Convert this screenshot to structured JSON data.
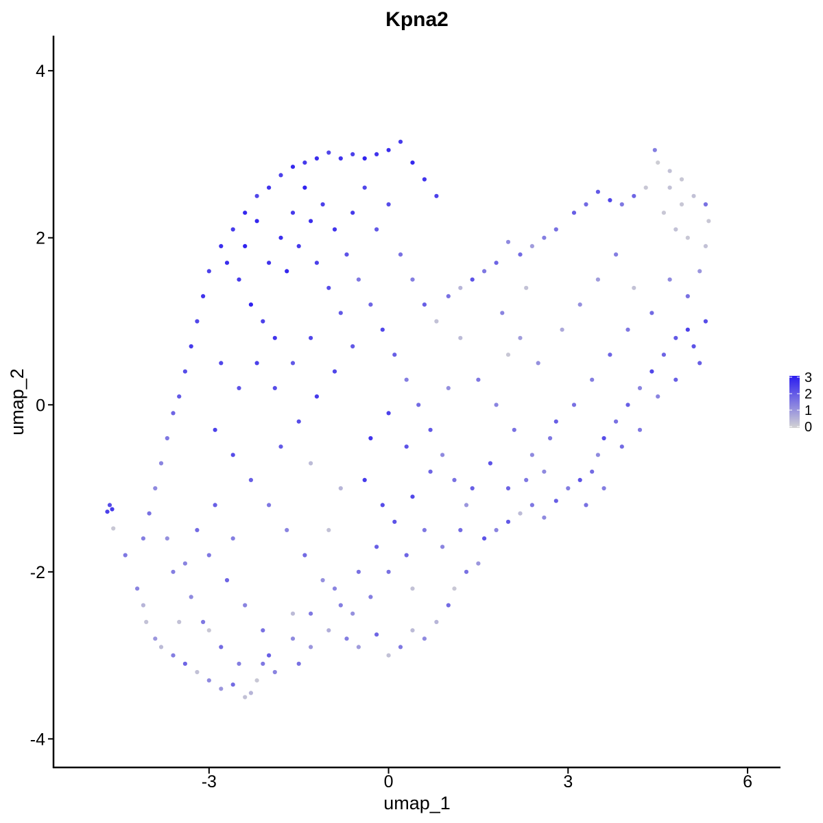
{
  "chart_data": {
    "type": "scatter",
    "title": "Kpna2",
    "xlabel": "umap_1",
    "ylabel": "umap_2",
    "xlim": [
      -5.6,
      6.55
    ],
    "ylim": [
      -4.35,
      4.42
    ],
    "x_ticks": [
      -3,
      0,
      3,
      6
    ],
    "y_ticks": [
      -4,
      -2,
      0,
      2,
      4
    ],
    "x_tick_labels": [
      "-3",
      "0",
      "3",
      "6"
    ],
    "y_tick_labels": [
      "-4",
      "-2",
      "0",
      "2",
      "4"
    ],
    "grid": false,
    "legend": {
      "placement": "right",
      "type": "colorbar",
      "range": [
        0,
        3
      ],
      "ticks": [
        0,
        1,
        2,
        3
      ],
      "labels": [
        "0",
        "1",
        "2",
        "3"
      ],
      "low_color": "#d3d3d3",
      "high_color": "#2a1cf0"
    },
    "colors": {
      "low": "#d3d3d3",
      "high": "#2a1cf0"
    },
    "points": [
      [
        -4.7,
        -1.28,
        2.4
      ],
      [
        -4.66,
        -1.2,
        2.2
      ],
      [
        -4.62,
        -1.25,
        2.5
      ],
      [
        -4.6,
        -1.48,
        0.2
      ],
      [
        -4.4,
        -1.8,
        1.5
      ],
      [
        -4.2,
        -2.2,
        1.3
      ],
      [
        -4.1,
        -2.4,
        0.5
      ],
      [
        -4.05,
        -2.6,
        0.3
      ],
      [
        -3.9,
        -2.8,
        1.0
      ],
      [
        -3.8,
        -2.9,
        0.4
      ],
      [
        -3.6,
        -3.0,
        1.4
      ],
      [
        -3.4,
        -3.1,
        1.8
      ],
      [
        -3.2,
        -3.2,
        0.3
      ],
      [
        -3.0,
        -3.3,
        1.2
      ],
      [
        -2.8,
        -3.4,
        1.0
      ],
      [
        -2.6,
        -3.35,
        1.7
      ],
      [
        -2.4,
        -3.5,
        0.3
      ],
      [
        -2.3,
        -3.45,
        0.5
      ],
      [
        -2.2,
        -3.3,
        0.2
      ],
      [
        -2.1,
        -3.1,
        1.5
      ],
      [
        -2.0,
        -3.0,
        1.9
      ],
      [
        -1.9,
        -3.2,
        1.3
      ],
      [
        -1.5,
        -3.1,
        1.6
      ],
      [
        -1.3,
        -2.9,
        1.0
      ],
      [
        -1.0,
        -2.7,
        0.6
      ],
      [
        -0.7,
        -2.8,
        1.4
      ],
      [
        -0.5,
        -2.9,
        0.9
      ],
      [
        -0.2,
        -2.75,
        1.8
      ],
      [
        0.0,
        -3.0,
        0.3
      ],
      [
        0.2,
        -2.9,
        1.5
      ],
      [
        0.4,
        -2.7,
        0.4
      ],
      [
        0.6,
        -2.8,
        1.2
      ],
      [
        0.8,
        -2.6,
        0.5
      ],
      [
        1.0,
        -2.4,
        1.7
      ],
      [
        1.1,
        -2.2,
        0.2
      ],
      [
        1.3,
        -2.0,
        1.6
      ],
      [
        1.5,
        -1.9,
        1.0
      ],
      [
        1.6,
        -1.6,
        2.1
      ],
      [
        1.8,
        -1.5,
        1.3
      ],
      [
        2.0,
        -1.4,
        2.0
      ],
      [
        2.2,
        -1.3,
        0.4
      ],
      [
        2.4,
        -1.2,
        1.5
      ],
      [
        2.6,
        -1.35,
        1.2
      ],
      [
        2.8,
        -1.15,
        1.9
      ],
      [
        3.0,
        -1.0,
        1.4
      ],
      [
        3.2,
        -0.9,
        2.1
      ],
      [
        3.4,
        -0.8,
        1.7
      ],
      [
        3.5,
        -0.6,
        1.2
      ],
      [
        3.6,
        -0.4,
        2.2
      ],
      [
        3.8,
        -0.2,
        1.6
      ],
      [
        4.0,
        0.0,
        1.9
      ],
      [
        4.2,
        0.2,
        1.3
      ],
      [
        4.4,
        0.4,
        2.3
      ],
      [
        4.6,
        0.6,
        1.8
      ],
      [
        4.8,
        0.8,
        2.0
      ],
      [
        5.0,
        0.9,
        2.4
      ],
      [
        5.1,
        0.7,
        2.1
      ],
      [
        5.2,
        0.5,
        1.9
      ],
      [
        5.3,
        1.0,
        2.2
      ],
      [
        5.0,
        1.3,
        1.6
      ],
      [
        5.2,
        1.6,
        1.0
      ],
      [
        5.3,
        1.9,
        0.3
      ],
      [
        5.35,
        2.2,
        0.2
      ],
      [
        5.3,
        2.4,
        1.6
      ],
      [
        5.1,
        2.5,
        0.3
      ],
      [
        4.9,
        2.7,
        0.2
      ],
      [
        4.7,
        2.8,
        0.3
      ],
      [
        4.5,
        2.9,
        0.1
      ],
      [
        4.45,
        3.05,
        1.4
      ],
      [
        4.3,
        2.6,
        0.2
      ],
      [
        4.1,
        2.5,
        1.8
      ],
      [
        3.9,
        2.4,
        1.5
      ],
      [
        3.7,
        2.45,
        2.3
      ],
      [
        3.5,
        2.55,
        2.0
      ],
      [
        3.3,
        2.4,
        1.7
      ],
      [
        3.1,
        2.3,
        1.9
      ],
      [
        2.8,
        2.1,
        1.6
      ],
      [
        2.6,
        2.0,
        1.4
      ],
      [
        2.4,
        1.9,
        0.9
      ],
      [
        2.2,
        1.8,
        1.7
      ],
      [
        2.0,
        1.95,
        1.2
      ],
      [
        1.8,
        1.7,
        1.8
      ],
      [
        1.6,
        1.6,
        1.5
      ],
      [
        1.4,
        1.5,
        2.1
      ],
      [
        1.2,
        1.4,
        0.5
      ],
      [
        1.0,
        1.3,
        1.6
      ],
      [
        0.8,
        2.5,
        2.4
      ],
      [
        0.6,
        2.7,
        2.6
      ],
      [
        0.4,
        2.9,
        2.8
      ],
      [
        0.2,
        3.15,
        2.5
      ],
      [
        0.0,
        3.05,
        2.7
      ],
      [
        -0.2,
        3.0,
        2.6
      ],
      [
        -0.4,
        2.95,
        2.9
      ],
      [
        -0.6,
        3.0,
        2.4
      ],
      [
        -0.8,
        2.95,
        2.6
      ],
      [
        -1.0,
        3.02,
        2.3
      ],
      [
        -1.2,
        2.95,
        2.7
      ],
      [
        -1.4,
        2.9,
        2.5
      ],
      [
        -1.6,
        2.85,
        2.8
      ],
      [
        -1.8,
        2.75,
        2.4
      ],
      [
        -2.0,
        2.6,
        2.6
      ],
      [
        -2.2,
        2.5,
        2.3
      ],
      [
        -2.4,
        2.3,
        2.8
      ],
      [
        -2.6,
        2.1,
        2.5
      ],
      [
        -2.8,
        1.9,
        2.7
      ],
      [
        -3.0,
        1.6,
        2.4
      ],
      [
        -3.1,
        1.3,
        2.6
      ],
      [
        -3.2,
        1.0,
        2.3
      ],
      [
        -3.3,
        0.7,
        2.5
      ],
      [
        -3.4,
        0.4,
        2.2
      ],
      [
        -3.5,
        0.1,
        2.0
      ],
      [
        -3.6,
        -0.1,
        1.8
      ],
      [
        -3.7,
        -0.4,
        1.5
      ],
      [
        -3.8,
        -0.7,
        1.3
      ],
      [
        -3.9,
        -1.0,
        1.2
      ],
      [
        -4.0,
        -1.3,
        1.6
      ],
      [
        -4.1,
        -1.6,
        1.4
      ],
      [
        -2.7,
        1.7,
        2.7
      ],
      [
        -2.5,
        1.5,
        2.5
      ],
      [
        -2.3,
        1.2,
        2.9
      ],
      [
        -2.1,
        1.0,
        2.4
      ],
      [
        -1.9,
        0.8,
        2.6
      ],
      [
        -1.7,
        1.6,
        2.8
      ],
      [
        -1.5,
        1.9,
        2.5
      ],
      [
        -1.3,
        2.2,
        2.7
      ],
      [
        -1.1,
        2.4,
        2.4
      ],
      [
        -0.9,
        2.1,
        2.6
      ],
      [
        -0.7,
        1.8,
        2.1
      ],
      [
        -0.5,
        1.5,
        1.5
      ],
      [
        -0.3,
        1.2,
        1.8
      ],
      [
        -0.1,
        0.9,
        2.3
      ],
      [
        0.1,
        0.6,
        1.9
      ],
      [
        0.3,
        0.3,
        1.4
      ],
      [
        0.5,
        0.0,
        1.7
      ],
      [
        0.7,
        -0.3,
        2.0
      ],
      [
        0.9,
        -0.6,
        1.2
      ],
      [
        1.1,
        -0.9,
        1.6
      ],
      [
        1.3,
        -1.2,
        1.0
      ],
      [
        -2.9,
        -0.3,
        2.4
      ],
      [
        -2.6,
        -0.6,
        2.2
      ],
      [
        -2.3,
        -0.9,
        1.9
      ],
      [
        -2.0,
        -1.2,
        1.5
      ],
      [
        -1.7,
        -1.5,
        1.3
      ],
      [
        -1.4,
        -1.8,
        1.7
      ],
      [
        -1.1,
        -2.1,
        1.1
      ],
      [
        -0.8,
        -2.4,
        1.4
      ],
      [
        -0.5,
        -2.0,
        1.6
      ],
      [
        -0.2,
        -1.7,
        1.9
      ],
      [
        0.1,
        -1.4,
        2.1
      ],
      [
        0.4,
        -1.1,
        2.3
      ],
      [
        0.7,
        -0.8,
        1.8
      ],
      [
        -3.0,
        -1.8,
        1.5
      ],
      [
        -2.7,
        -2.1,
        1.8
      ],
      [
        -2.4,
        -2.4,
        1.3
      ],
      [
        -2.1,
        -2.7,
        1.6
      ],
      [
        -3.3,
        -2.3,
        1.2
      ],
      [
        -3.6,
        -2.0,
        1.4
      ],
      [
        -3.2,
        -1.5,
        1.7
      ],
      [
        -2.9,
        -1.2,
        1.9
      ],
      [
        -2.6,
        -1.6,
        1.4
      ],
      [
        -1.8,
        -0.5,
        2.0
      ],
      [
        -1.5,
        -0.2,
        2.2
      ],
      [
        -1.2,
        0.1,
        2.5
      ],
      [
        -0.9,
        0.4,
        2.3
      ],
      [
        -0.6,
        0.7,
        2.0
      ],
      [
        -0.3,
        -0.4,
        2.6
      ],
      [
        0.0,
        -0.1,
        2.4
      ],
      [
        0.3,
        -0.5,
        2.1
      ],
      [
        -0.4,
        -0.9,
        2.5
      ],
      [
        -0.1,
        -1.2,
        2.2
      ],
      [
        1.5,
        0.3,
        1.5
      ],
      [
        1.8,
        0.0,
        1.3
      ],
      [
        2.1,
        -0.3,
        1.6
      ],
      [
        2.4,
        -0.6,
        1.2
      ],
      [
        2.7,
        -0.4,
        1.5
      ],
      [
        2.5,
        0.5,
        1.1
      ],
      [
        2.2,
        0.8,
        0.9
      ],
      [
        1.9,
        1.1,
        1.3
      ],
      [
        2.9,
        0.9,
        0.7
      ],
      [
        3.2,
        1.2,
        1.1
      ],
      [
        3.5,
        1.5,
        0.9
      ],
      [
        3.8,
        1.8,
        1.4
      ],
      [
        4.1,
        1.4,
        0.3
      ],
      [
        4.4,
        1.1,
        1.7
      ],
      [
        4.7,
        1.5,
        1.2
      ],
      [
        4.0,
        0.9,
        1.5
      ],
      [
        3.7,
        0.6,
        1.8
      ],
      [
        3.4,
        0.3,
        1.4
      ],
      [
        3.1,
        0.0,
        1.6
      ],
      [
        2.8,
        -0.2,
        1.9
      ],
      [
        1.2,
        0.8,
        0.4
      ],
      [
        1.0,
        0.2,
        1.1
      ],
      [
        0.8,
        1.0,
        0.3
      ],
      [
        2.3,
        1.4,
        0.3
      ],
      [
        2.0,
        0.6,
        0.2
      ],
      [
        -1.0,
        -1.5,
        0.3
      ],
      [
        -0.8,
        -1.0,
        0.5
      ],
      [
        -1.3,
        -0.7,
        0.4
      ],
      [
        0.4,
        -2.2,
        0.3
      ],
      [
        -1.6,
        -2.5,
        0.4
      ],
      [
        -3.5,
        -2.6,
        0.3
      ],
      [
        -3.0,
        -2.7,
        0.2
      ],
      [
        4.6,
        2.3,
        0.2
      ],
      [
        4.8,
        2.1,
        0.3
      ],
      [
        5.0,
        2.0,
        0.2
      ],
      [
        4.7,
        2.6,
        0.3
      ],
      [
        4.9,
        2.4,
        0.2
      ],
      [
        -2.4,
        1.9,
        2.9
      ],
      [
        -2.2,
        2.2,
        2.8
      ],
      [
        -2.0,
        1.7,
        2.6
      ],
      [
        -1.8,
        2.0,
        2.7
      ],
      [
        -1.6,
        2.3,
        2.5
      ],
      [
        -1.4,
        2.6,
        2.9
      ],
      [
        -1.2,
        1.7,
        2.4
      ],
      [
        -1.0,
        1.4,
        2.2
      ],
      [
        -0.8,
        1.1,
        2.0
      ],
      [
        -0.6,
        2.3,
        2.5
      ],
      [
        -0.4,
        2.6,
        2.3
      ],
      [
        -0.2,
        2.1,
        2.0
      ],
      [
        0.0,
        2.4,
        2.2
      ],
      [
        0.2,
        1.8,
        1.6
      ],
      [
        0.4,
        1.5,
        1.4
      ],
      [
        0.6,
        1.2,
        1.9
      ],
      [
        -2.8,
        0.5,
        2.3
      ],
      [
        -2.5,
        0.2,
        2.1
      ],
      [
        -2.2,
        0.5,
        2.4
      ],
      [
        -1.9,
        0.2,
        2.2
      ],
      [
        -1.6,
        0.5,
        2.0
      ],
      [
        -1.3,
        0.8,
        2.3
      ],
      [
        -3.7,
        -1.6,
        1.1
      ],
      [
        -3.4,
        -1.9,
        1.3
      ],
      [
        -3.1,
        -2.6,
        1.5
      ],
      [
        -2.8,
        -2.9,
        1.7
      ],
      [
        -2.5,
        -3.1,
        1.4
      ],
      [
        -1.6,
        -2.8,
        1.2
      ],
      [
        -1.3,
        -2.5,
        1.5
      ],
      [
        -0.9,
        -2.2,
        1.3
      ],
      [
        -0.6,
        -2.5,
        1.1
      ],
      [
        -0.3,
        -2.3,
        1.4
      ],
      [
        0.0,
        -2.0,
        1.6
      ],
      [
        0.3,
        -1.8,
        1.8
      ],
      [
        0.6,
        -1.5,
        1.5
      ],
      [
        0.9,
        -1.7,
        1.3
      ],
      [
        1.2,
        -1.5,
        1.7
      ],
      [
        1.4,
        -1.0,
        1.9
      ],
      [
        1.7,
        -0.7,
        2.1
      ],
      [
        2.0,
        -1.0,
        1.8
      ],
      [
        2.3,
        -0.9,
        1.5
      ],
      [
        2.6,
        -0.8,
        1.2
      ],
      [
        3.3,
        -1.2,
        1.6
      ],
      [
        3.6,
        -1.0,
        1.4
      ],
      [
        3.9,
        -0.5,
        1.7
      ],
      [
        4.2,
        -0.3,
        1.5
      ],
      [
        4.5,
        0.1,
        1.3
      ],
      [
        4.8,
        0.3,
        1.9
      ]
    ]
  }
}
